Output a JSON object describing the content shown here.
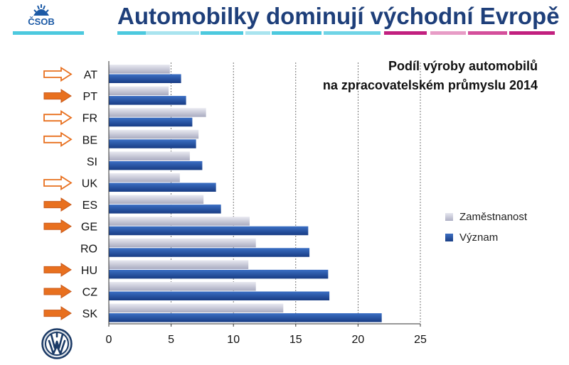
{
  "header": {
    "brand_text": "ČSOB",
    "title": "Automobilky dominují východní Evropě"
  },
  "colors": {
    "title": "#1e3f7a",
    "brand_blue": "#1c5aa6",
    "series_employment": "#c4c6d6",
    "series_significance": "#1f4f9e",
    "arrow": "#e8701f",
    "stripe_cyan": "#4cc9de",
    "stripe_magenta": "#c2207f"
  },
  "chart_data": {
    "type": "bar",
    "orientation": "horizontal",
    "title": [
      "Podíl výroby automobilů",
      "na zpracovatelském průmyslu 2014"
    ],
    "categories": [
      "AT",
      "PT",
      "FR",
      "BE",
      "SI",
      "UK",
      "ES",
      "GE",
      "RO",
      "HU",
      "CZ",
      "SK"
    ],
    "series": [
      {
        "name": "Zaměstnanost",
        "values": [
          4.9,
          4.8,
          7.8,
          7.2,
          6.5,
          5.7,
          7.6,
          11.3,
          11.8,
          11.2,
          11.8,
          14.0
        ]
      },
      {
        "name": "Význam",
        "values": [
          5.8,
          6.2,
          6.7,
          7.0,
          7.5,
          8.6,
          9.0,
          16.0,
          16.1,
          17.6,
          17.7,
          21.9
        ]
      }
    ],
    "xlim": [
      0,
      25
    ],
    "xticks": [
      0,
      5,
      10,
      15,
      20,
      25
    ],
    "grid": "vertical-dashed",
    "legend_position": "right",
    "category_markers": [
      "arrow-outline",
      "arrow-filled",
      "arrow-outline",
      "arrow-outline",
      "none",
      "arrow-outline",
      "arrow-filled",
      "arrow-filled",
      "none",
      "arrow-filled",
      "arrow-filled",
      "arrow-filled"
    ]
  }
}
